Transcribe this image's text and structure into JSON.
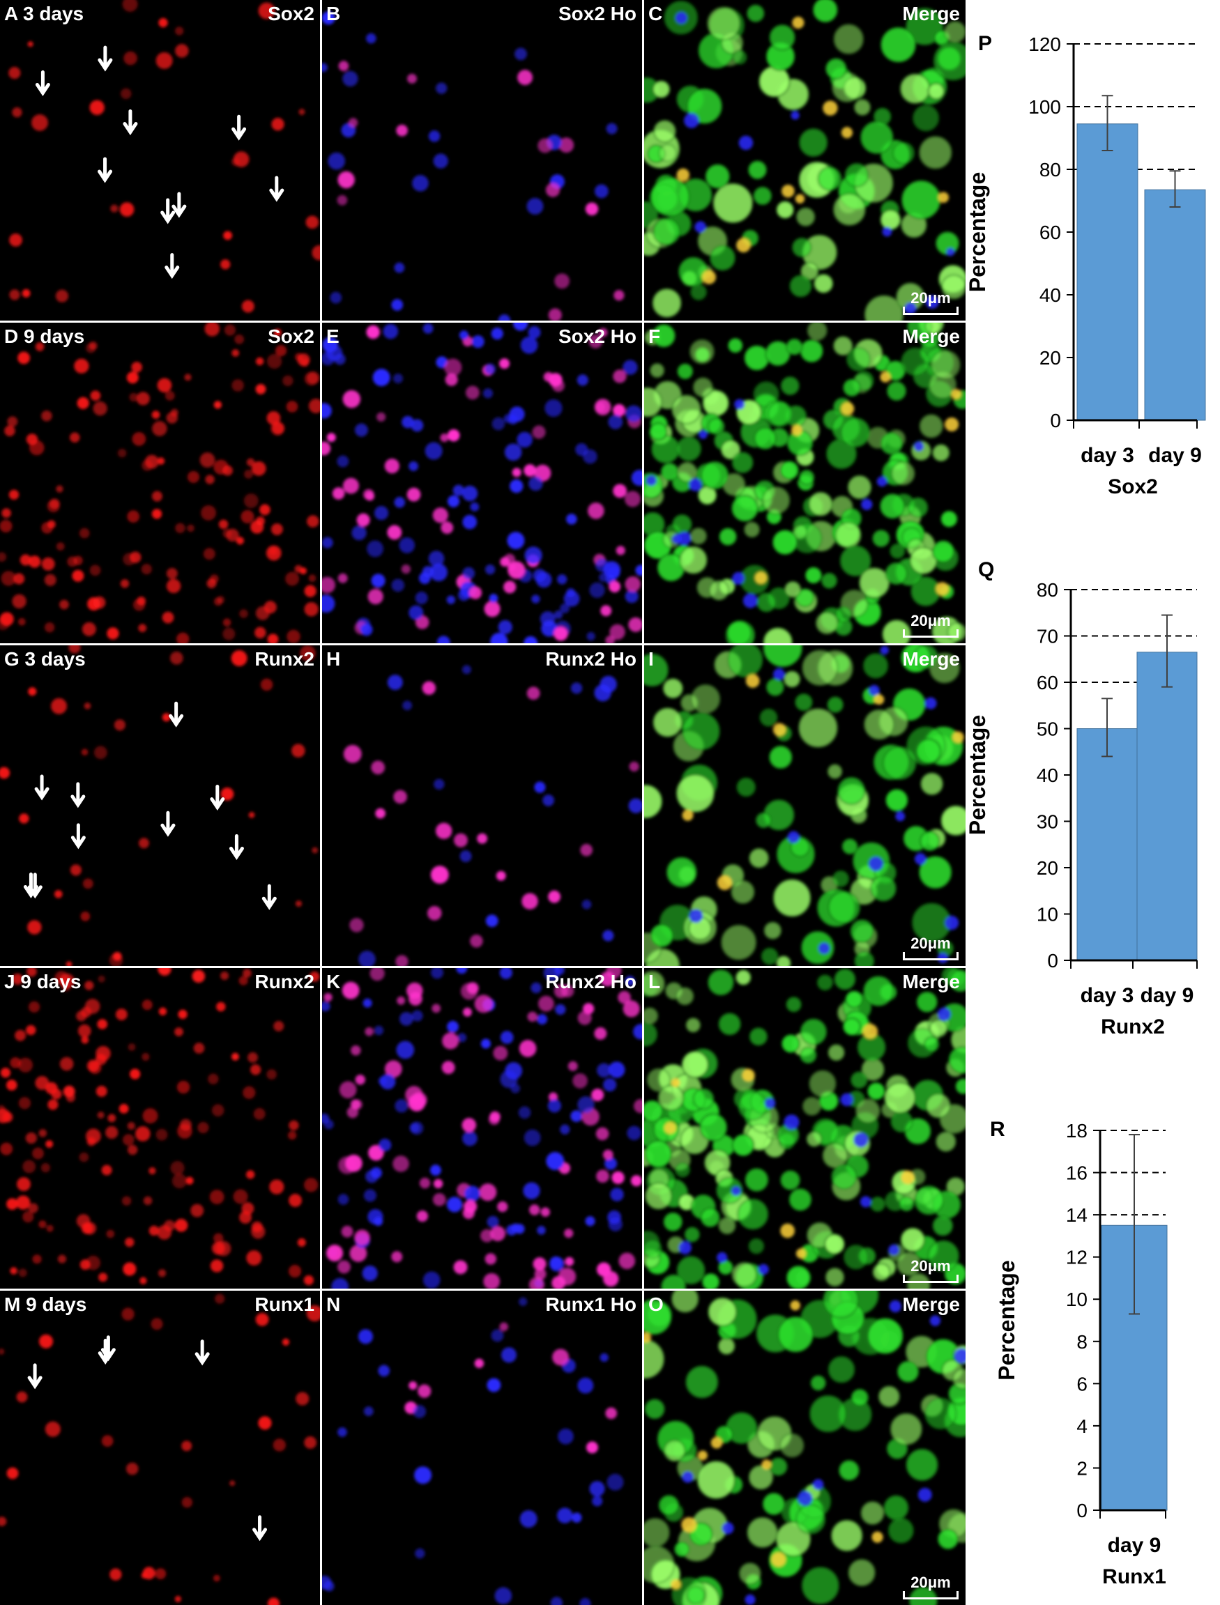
{
  "panels": [
    {
      "id": "A",
      "letter": "A",
      "time": "3 days",
      "channel": "Sox2",
      "type": "red",
      "arrows": 9
    },
    {
      "id": "B",
      "letter": "B",
      "time": "",
      "channel": "Sox2 Ho",
      "type": "redblue"
    },
    {
      "id": "C",
      "letter": "C",
      "time": "",
      "channel": "Merge",
      "type": "merge",
      "scale": "20μm"
    },
    {
      "id": "D",
      "letter": "D",
      "time": "9 days",
      "channel": "Sox2",
      "type": "red"
    },
    {
      "id": "E",
      "letter": "E",
      "time": "",
      "channel": "Sox2 Ho",
      "type": "redblue"
    },
    {
      "id": "F",
      "letter": "F",
      "time": "",
      "channel": "Merge",
      "type": "merge",
      "scale": "20μm"
    },
    {
      "id": "G",
      "letter": "G",
      "time": "3 days",
      "channel": "Runx2",
      "type": "red",
      "arrows": 10
    },
    {
      "id": "H",
      "letter": "H",
      "time": "",
      "channel": "Runx2 Ho",
      "type": "redblue"
    },
    {
      "id": "I",
      "letter": "I",
      "time": "",
      "channel": "Merge",
      "type": "merge",
      "scale": "20μm"
    },
    {
      "id": "J",
      "letter": "J",
      "time": "9 days",
      "channel": "Runx2",
      "type": "red"
    },
    {
      "id": "K",
      "letter": "K",
      "time": "",
      "channel": "Runx2 Ho",
      "type": "redblue"
    },
    {
      "id": "L",
      "letter": "L",
      "time": "",
      "channel": "Merge",
      "type": "merge",
      "scale": "20μm"
    },
    {
      "id": "M",
      "letter": "M",
      "time": "9 days",
      "channel": "Runx1",
      "type": "red",
      "arrows": 5
    },
    {
      "id": "N",
      "letter": "N",
      "time": "",
      "channel": "Runx1 Ho",
      "type": "redblue"
    },
    {
      "id": "O",
      "letter": "O",
      "time": "",
      "channel": "Merge",
      "type": "merge",
      "scale": "20μm"
    }
  ],
  "colors": {
    "bar": "#5b9bd5",
    "bar_edge": "#41719c",
    "error": "#404040",
    "red": "#ff1a1a",
    "blue": "#2a2aff",
    "green": "#2ee02e"
  },
  "chart_data": [
    {
      "panel_label": "P",
      "type": "bar",
      "categories": [
        "day 3",
        "day 9"
      ],
      "values": [
        94.5,
        73.5
      ],
      "errors": [
        [
          86,
          103.5
        ],
        [
          68,
          79.5
        ]
      ],
      "ylabel": "Percentage",
      "xlabel": "Sox2",
      "ylim": [
        0,
        120
      ],
      "yticks": [
        0,
        20,
        40,
        60,
        80,
        100,
        120
      ],
      "dashed_gridlines": [
        80,
        100,
        120
      ]
    },
    {
      "panel_label": "Q",
      "type": "bar",
      "categories": [
        "day 3",
        "day 9"
      ],
      "values": [
        50,
        66.5
      ],
      "errors": [
        [
          44,
          56.5
        ],
        [
          59,
          74.5
        ]
      ],
      "ylabel": "Percentage",
      "xlabel": "Runx2",
      "ylim": [
        0,
        80
      ],
      "yticks": [
        0,
        10,
        20,
        30,
        40,
        50,
        60,
        70,
        80
      ],
      "dashed_gridlines": [
        60,
        70,
        80
      ]
    },
    {
      "panel_label": "R",
      "type": "bar",
      "categories": [
        "day 9"
      ],
      "values": [
        13.5
      ],
      "errors": [
        [
          9.3,
          17.8
        ]
      ],
      "ylabel": "Percentage",
      "xlabel": "Runx1",
      "ylim": [
        0,
        18
      ],
      "yticks": [
        0,
        2,
        4,
        6,
        8,
        10,
        12,
        14,
        16,
        18
      ],
      "dashed_gridlines": [
        14,
        16,
        18
      ]
    }
  ]
}
